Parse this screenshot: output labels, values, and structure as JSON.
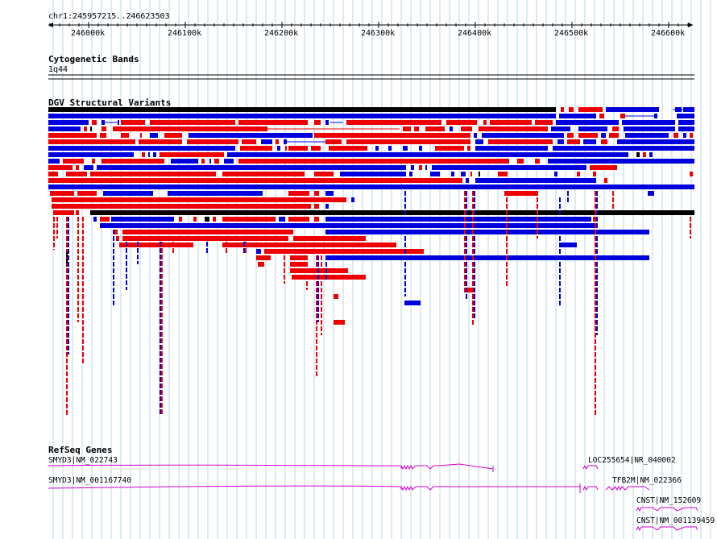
{
  "ruler": {
    "location": "chr1:245957215..246623503",
    "ticks": [
      "246000k",
      "246100k",
      "246200k",
      "246300k",
      "246400k",
      "246500k",
      "246600k"
    ]
  },
  "tracks": {
    "cytoband": {
      "title": "Cytogenetic Bands",
      "band": "1q44"
    },
    "dgv": {
      "title": "DGV Structural Variants"
    },
    "refseq": {
      "title": "RefSeq Genes",
      "genes": [
        "SMYD3|NM_022743",
        "SMYD3|NM_001167740",
        "LOC255654|NR_040002",
        "TFB2M|NM_022366",
        "CNST|NM_152609",
        "CNST|NM_001139459"
      ]
    }
  },
  "colors": {
    "gain": "#ee0000",
    "loss": "#0000dd",
    "complex": "#000000",
    "gene": "#cc00cc",
    "grid": "#b4d7e8"
  }
}
